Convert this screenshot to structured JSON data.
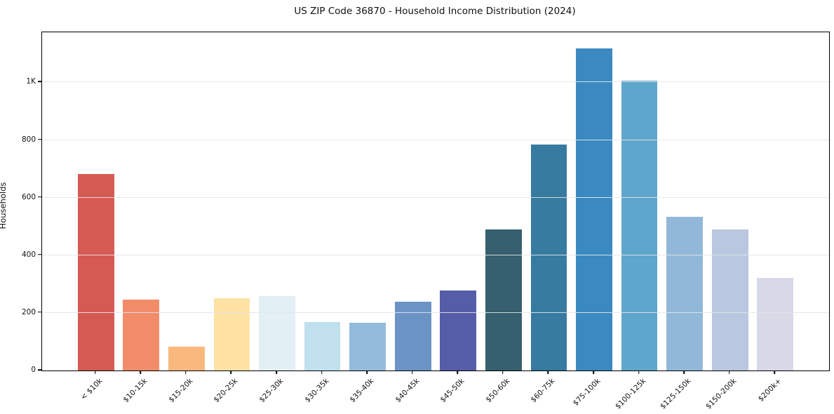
{
  "window": {
    "background": "#ffffff"
  },
  "chart_data": {
    "type": "bar",
    "title": "US ZIP Code 36870 - Household Income Distribution (2024)",
    "xlabel": "",
    "ylabel": "Households",
    "categories": [
      "< $10k",
      "$10-15k",
      "$15-20k",
      "$20-25k",
      "$25-30k",
      "$30-35k",
      "$35-40k",
      "$40-45k",
      "$45-50k",
      "$50-60k",
      "$60-75k",
      "$75-100k",
      "$100-125k",
      "$125-150k",
      "$150-200k",
      "$200k+"
    ],
    "values": [
      683,
      245,
      83,
      250,
      258,
      167,
      165,
      238,
      277,
      490,
      785,
      1117,
      1007,
      533,
      490,
      322
    ],
    "bar_colors": [
      "#d65a54",
      "#f38c69",
      "#fab87d",
      "#fde2a3",
      "#e2eff4",
      "#bfe0ec",
      "#93bcdc",
      "#6b93c6",
      "#565da8",
      "#365f70",
      "#377ba1",
      "#3a8ac1",
      "#5ea6cb",
      "#92b8d9",
      "#b9c8e0",
      "#d7d9e7"
    ],
    "ylim": [
      0,
      1174
    ],
    "y_ticks": [
      {
        "value": 0,
        "label": "0"
      },
      {
        "value": 200,
        "label": "200"
      },
      {
        "value": 400,
        "label": "400"
      },
      {
        "value": 600,
        "label": "600"
      },
      {
        "value": 800,
        "label": "800"
      },
      {
        "value": 1000,
        "label": "1K"
      }
    ],
    "x_tick_rotation_deg": 45,
    "grid": "horizontal gridlines drawn over bars",
    "gridline_color": "#e2e5e7",
    "legend": "none",
    "text_color": "#111111",
    "spine_color": "#000000",
    "background": "#ffffff"
  }
}
